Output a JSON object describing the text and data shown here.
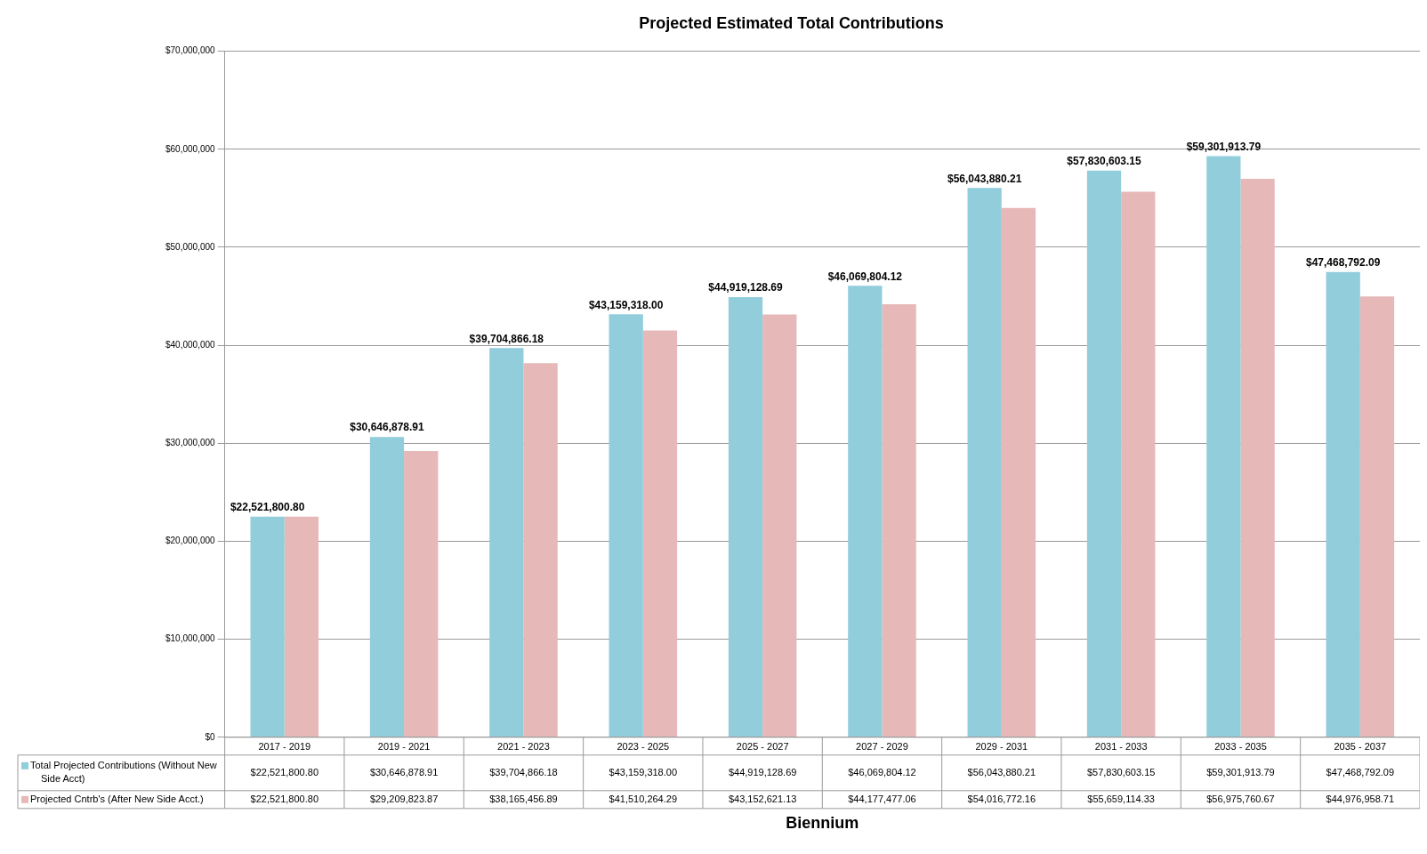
{
  "chart_data": {
    "type": "bar",
    "title": "Projected Estimated Total Contributions",
    "xlabel": "Biennium",
    "categories": [
      "2017 - 2019",
      "2019 - 2021",
      "2021 - 2023",
      "2023 - 2025",
      "2025 - 2027",
      "2027 - 2029",
      "2029 - 2031",
      "2031 - 2033",
      "2033 - 2035",
      "2035 - 2037"
    ],
    "series": [
      {
        "name": "Total Projected Contributions (Without New Side Acct)",
        "color": "#92cddc",
        "values": [
          22521800.8,
          30646878.91,
          39704866.18,
          43159318.0,
          44919128.69,
          46069804.12,
          56043880.21,
          57830603.15,
          59301913.79,
          47468792.09
        ],
        "value_labels": [
          "$22,521,800.80",
          "$30,646,878.91",
          "$39,704,866.18",
          "$43,159,318.00",
          "$44,919,128.69",
          "$46,069,804.12",
          "$56,043,880.21",
          "$57,830,603.15",
          "$59,301,913.79",
          "$47,468,792.09"
        ]
      },
      {
        "name": "Projected Cntrb's (After New Side Acct.)",
        "color": "#e6b9b8",
        "values": [
          22521800.8,
          29209823.87,
          38165456.89,
          41510264.29,
          43152621.13,
          44177477.06,
          54016772.16,
          55659114.33,
          56975760.67,
          44976958.71
        ],
        "value_labels": [
          "$22,521,800.80",
          "$29,209,823.87",
          "$38,165,456.89",
          "$41,510,264.29",
          "$43,152,621.13",
          "$44,177,477.06",
          "$54,016,772.16",
          "$55,659,114.33",
          "$56,975,760.67",
          "$44,976,958.71"
        ]
      }
    ],
    "ylim": [
      0,
      70000000
    ],
    "yticks": [
      {
        "value": 0,
        "label": "$0"
      },
      {
        "value": 10000000,
        "label": "$10,000,000"
      },
      {
        "value": 20000000,
        "label": "$20,000,000"
      },
      {
        "value": 30000000,
        "label": "$30,000,000"
      },
      {
        "value": 40000000,
        "label": "$40,000,000"
      },
      {
        "value": 50000000,
        "label": "$50,000,000"
      },
      {
        "value": 60000000,
        "label": "$60,000,000"
      },
      {
        "value": 70000000,
        "label": "$70,000,000"
      }
    ],
    "grid": "y",
    "legend": "bottom left",
    "data_labels": true
  }
}
